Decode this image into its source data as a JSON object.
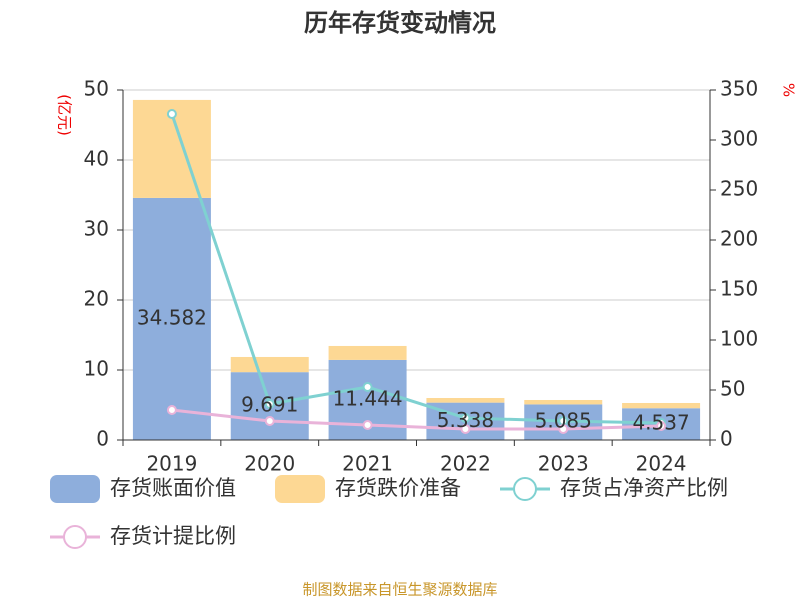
{
  "chart_data": {
    "type": "bar_line",
    "title": "历年存货变动情况",
    "y_label": "(亿元)",
    "y2_label": "%",
    "source": "制图数据来自恒生聚源数据库",
    "categories": [
      "2019",
      "2020",
      "2021",
      "2022",
      "2023",
      "2024"
    ],
    "ylim": [
      0,
      50
    ],
    "yticks": [
      0,
      10,
      20,
      30,
      40,
      50
    ],
    "y2lim": [
      0,
      350
    ],
    "y2ticks": [
      0,
      50,
      100,
      150,
      200,
      250,
      300,
      350
    ],
    "grid": true,
    "legend": "bottom",
    "series": [
      {
        "name": "存货账面价值",
        "type": "bar",
        "color": "#8eaedc",
        "labels": true,
        "values": [
          34.582,
          9.691,
          11.444,
          5.338,
          5.085,
          4.537
        ]
      },
      {
        "name": "存货跌价准备",
        "type": "bar",
        "color": "#fdd894",
        "values": [
          14.0,
          2.17,
          1.99,
          0.66,
          0.63,
          0.75
        ]
      },
      {
        "name": "存货占净资产比例",
        "type": "line",
        "axis": "y2",
        "color": "#7fd1d1",
        "values": [
          326,
          36,
          53,
          22,
          19,
          17
        ]
      },
      {
        "name": "存货计提比例",
        "type": "line",
        "axis": "y2",
        "color": "#e9b3d9",
        "values": [
          30,
          19,
          15,
          11,
          11,
          14
        ]
      }
    ]
  }
}
